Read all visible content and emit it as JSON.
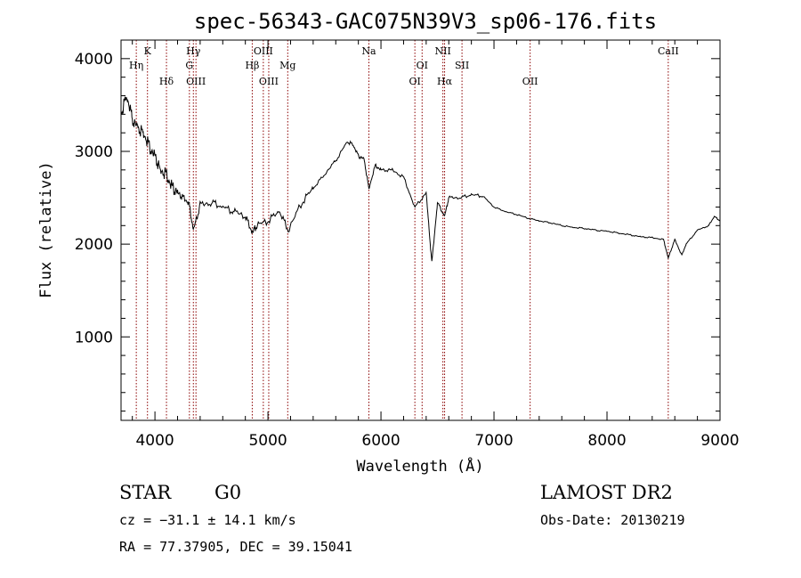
{
  "chart_data": {
    "type": "line",
    "title": "spec-56343-GAC075N39V3_sp06-176.fits",
    "xlabel": "Wavelength (Å)",
    "ylabel": "Flux (relative)",
    "xlim": [
      3700,
      9000
    ],
    "ylim": [
      100,
      4200
    ],
    "x_ticks": [
      4000,
      5000,
      6000,
      7000,
      8000,
      9000
    ],
    "y_ticks": [
      1000,
      2000,
      3000,
      4000
    ],
    "grid": false,
    "series": [
      {
        "x": [
          3700,
          3750,
          3800,
          3850,
          3900,
          3950,
          4000,
          4050,
          4100,
          4150,
          4200,
          4250,
          4300,
          4340,
          4400,
          4500,
          4600,
          4700,
          4800,
          4861,
          4900,
          5000,
          5100,
          5180,
          5300,
          5400,
          5500,
          5600,
          5700,
          5750,
          5800,
          5850,
          5893,
          5950,
          6000,
          6100,
          6200,
          6300,
          6400,
          6450,
          6500,
          6563,
          6600,
          6700,
          6800,
          6900,
          7000,
          7100,
          7200,
          7300,
          7400,
          7500,
          7600,
          7700,
          7800,
          7900,
          8000,
          8100,
          8200,
          8300,
          8400,
          8500,
          8542,
          8600,
          8662,
          8700,
          8800,
          8900,
          8950,
          9000
        ],
        "y": [
          3400,
          3600,
          3350,
          3250,
          3200,
          3050,
          2950,
          2800,
          2750,
          2620,
          2560,
          2500,
          2450,
          2150,
          2420,
          2450,
          2400,
          2350,
          2300,
          2120,
          2200,
          2250,
          2350,
          2150,
          2450,
          2600,
          2750,
          2900,
          3100,
          3080,
          2950,
          2920,
          2600,
          2850,
          2800,
          2800,
          2720,
          2400,
          2550,
          1800,
          2450,
          2300,
          2500,
          2500,
          2530,
          2520,
          2400,
          2350,
          2320,
          2280,
          2250,
          2230,
          2200,
          2180,
          2170,
          2150,
          2140,
          2120,
          2100,
          2080,
          2070,
          2050,
          1850,
          2050,
          1880,
          2000,
          2150,
          2200,
          2300,
          2250
        ]
      }
    ],
    "annotations": [
      {
        "label": "Hη",
        "x": 3835,
        "row": 2
      },
      {
        "label": "K",
        "x": 3934,
        "row": 1
      },
      {
        "label": "Hδ",
        "x": 4102,
        "row": 3
      },
      {
        "label": "Hγ",
        "x": 4340,
        "row": 1
      },
      {
        "label": "G",
        "x": 4305,
        "row": 2
      },
      {
        "label": "OIII",
        "x": 4363,
        "row": 3
      },
      {
        "label": "Hβ",
        "x": 4861,
        "row": 2
      },
      {
        "label": "OIII",
        "x": 4959,
        "row": 1
      },
      {
        "label": "OIII",
        "x": 5007,
        "row": 3
      },
      {
        "label": "Mg",
        "x": 5175,
        "row": 2
      },
      {
        "label": "Na",
        "x": 5893,
        "row": 1
      },
      {
        "label": "OI",
        "x": 6300,
        "row": 3
      },
      {
        "label": "OI",
        "x": 6364,
        "row": 2
      },
      {
        "label": "NII",
        "x": 6548,
        "row": 1
      },
      {
        "label": "Hα",
        "x": 6563,
        "row": 3
      },
      {
        "label": "SII",
        "x": 6717,
        "row": 2
      },
      {
        "label": "OII",
        "x": 7320,
        "row": 3
      },
      {
        "label": "CaII",
        "x": 8542,
        "row": 1
      }
    ],
    "line_color": "#000000",
    "marker_color": "#8b0000"
  },
  "info": {
    "class": "STAR",
    "subclass": "G0",
    "survey": "LAMOST DR2",
    "cz": "cz = −31.1 ± 14.1 km/s",
    "obs_date": "Obs-Date: 20130219",
    "coords": "RA =  77.37905, DEC =  39.15041"
  }
}
